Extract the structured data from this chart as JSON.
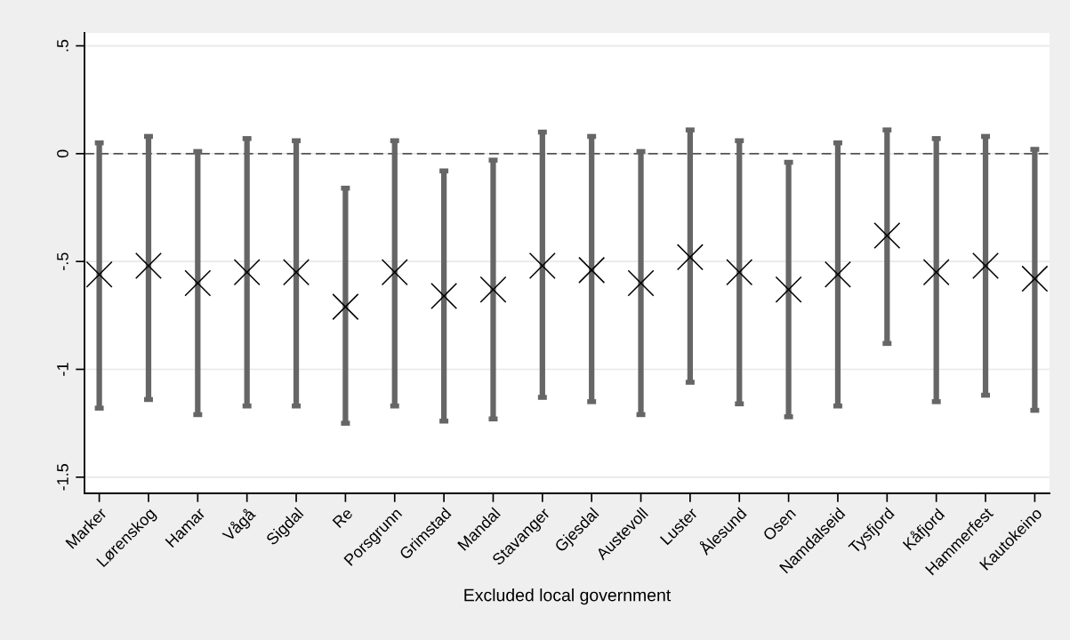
{
  "chart_data": {
    "type": "scatter",
    "xlabel": "Excluded local government",
    "categories": [
      "Marker",
      "Lørenskog",
      "Hamar",
      "Vågå",
      "Sigdal",
      "Re",
      "Porsgrunn",
      "Grimstad",
      "Mandal",
      "Stavanger",
      "Gjesdal",
      "Austevoll",
      "Luster",
      "Ålesund",
      "Osen",
      "Namdalseid",
      "Tysfjord",
      "Kåfjord",
      "Hammerfest",
      "Kautokeino"
    ],
    "values": [
      -0.56,
      -0.52,
      -0.6,
      -0.55,
      -0.55,
      -0.71,
      -0.55,
      -0.66,
      -0.63,
      -0.52,
      -0.54,
      -0.6,
      -0.48,
      -0.55,
      -0.63,
      -0.56,
      -0.38,
      -0.55,
      -0.52,
      -0.58
    ],
    "errors": [
      [
        -1.18,
        0.05
      ],
      [
        -1.14,
        0.08
      ],
      [
        -1.21,
        0.01
      ],
      [
        -1.17,
        0.07
      ],
      [
        -1.17,
        0.06
      ],
      [
        -1.25,
        -0.16
      ],
      [
        -1.17,
        0.06
      ],
      [
        -1.24,
        -0.08
      ],
      [
        -1.23,
        -0.03
      ],
      [
        -1.13,
        0.1
      ],
      [
        -1.15,
        0.08
      ],
      [
        -1.21,
        0.01
      ],
      [
        -1.06,
        0.11
      ],
      [
        -1.16,
        0.06
      ],
      [
        -1.22,
        -0.04
      ],
      [
        -1.17,
        0.05
      ],
      [
        -0.88,
        0.11
      ],
      [
        -1.15,
        0.07
      ],
      [
        -1.12,
        0.08
      ],
      [
        -1.19,
        0.02
      ]
    ],
    "color": "#000000",
    "marker": "cross",
    "ylim": [
      -1.575,
      0.56
    ],
    "yticks": [
      {
        "value": 0.5,
        "label": ".5"
      },
      0,
      {
        "value": -0.5,
        "label": "-.5"
      },
      -1,
      {
        "value": -1.5,
        "label": "-1.5"
      }
    ],
    "grid": "y",
    "ref_lines": [
      {
        "axis": "y",
        "value": 0,
        "line_style": "dashed",
        "color": "#555555"
      }
    ]
  }
}
